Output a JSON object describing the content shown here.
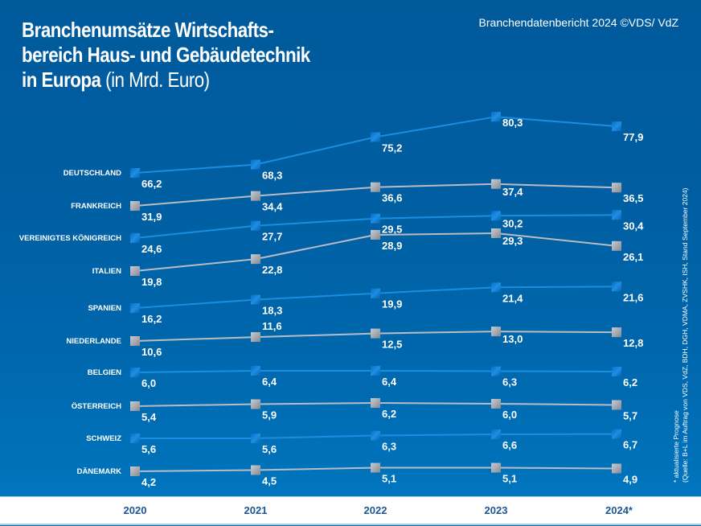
{
  "header": {
    "title_line1": "Branchenumsätze Wirtschafts-",
    "title_line2": "bereich Haus- und Gebäudetechnik",
    "title_line3_bold": "in Europa",
    "title_line3_light": " (in Mrd. Euro)",
    "credit": "Branchendatenbericht 2024 ©VDS/ VdZ"
  },
  "source": {
    "line1": "* aktualisierte Prognose",
    "line2": "(Quelle: B+L im Auftrag von VDS, VdZ, BDH, DGH, VDMA, ZVSHK, ISH, Stand September 2024)"
  },
  "colors": {
    "blue_series": "#1a8ee0",
    "gray_series": "#b9bcc4",
    "year_text": "#1c5694"
  },
  "chart_data": {
    "type": "line",
    "title": "Branchenumsätze Wirtschaftsbereich Haus- und Gebäudetechnik in Europa (in Mrd. Euro)",
    "xlabel": "",
    "ylabel": "Mrd. Euro",
    "categories": [
      "2020",
      "2021",
      "2022",
      "2023",
      "2024*"
    ],
    "grid": false,
    "legend": "left (row labels)",
    "series": [
      {
        "name": "DEUTSCHLAND",
        "style": "blue",
        "values": [
          66.2,
          68.3,
          75.2,
          80.3,
          77.9
        ]
      },
      {
        "name": "FRANKREICH",
        "style": "gray",
        "values": [
          31.9,
          34.4,
          36.6,
          37.4,
          36.5
        ]
      },
      {
        "name": "VEREINIGTES KÖNIGREICH",
        "style": "blue",
        "values": [
          24.6,
          27.7,
          29.5,
          30.2,
          30.4
        ]
      },
      {
        "name": "ITALIEN",
        "style": "gray",
        "values": [
          19.8,
          22.8,
          28.9,
          29.3,
          26.1
        ]
      },
      {
        "name": "SPANIEN",
        "style": "blue",
        "values": [
          16.2,
          18.3,
          19.9,
          21.4,
          21.6
        ]
      },
      {
        "name": "NIEDERLANDE",
        "style": "gray",
        "values": [
          10.6,
          11.6,
          12.5,
          13.0,
          12.8
        ]
      },
      {
        "name": "BELGIEN",
        "style": "blue",
        "values": [
          6.0,
          6.4,
          6.4,
          6.3,
          6.2
        ]
      },
      {
        "name": "ÖSTERREICH",
        "style": "gray",
        "values": [
          5.4,
          5.9,
          6.2,
          6.0,
          5.7
        ]
      },
      {
        "name": "SCHWEIZ",
        "style": "blue",
        "values": [
          5.6,
          5.6,
          6.3,
          6.6,
          6.7
        ]
      },
      {
        "name": "DÄNEMARK",
        "style": "gray",
        "values": [
          4.2,
          4.5,
          5.1,
          5.1,
          4.9
        ]
      }
    ],
    "labels": [
      [
        "66,2",
        "68,3",
        "75,2",
        "80,3",
        "77,9"
      ],
      [
        "31,9",
        "34,4",
        "36,6",
        "37,4",
        "36,5"
      ],
      [
        "24,6",
        "27,7",
        "29,5",
        "30,2",
        "30,4"
      ],
      [
        "19,8",
        "22,8",
        "28,9",
        "29,3",
        "26,1"
      ],
      [
        "16,2",
        "18,3",
        "19,9",
        "21,4",
        "21,6"
      ],
      [
        "10,6",
        "11,6",
        "12,5",
        "13,0",
        "12,8"
      ],
      [
        "6,0",
        "6,4",
        "6,4",
        "6,3",
        "6,2"
      ],
      [
        "5,4",
        "5,9",
        "6,2",
        "6,0",
        "5,7"
      ],
      [
        "5,6",
        "5,6",
        "6,3",
        "6,6",
        "6,7"
      ],
      [
        "4,2",
        "4,5",
        "5,1",
        "5,1",
        "4,9"
      ]
    ]
  }
}
